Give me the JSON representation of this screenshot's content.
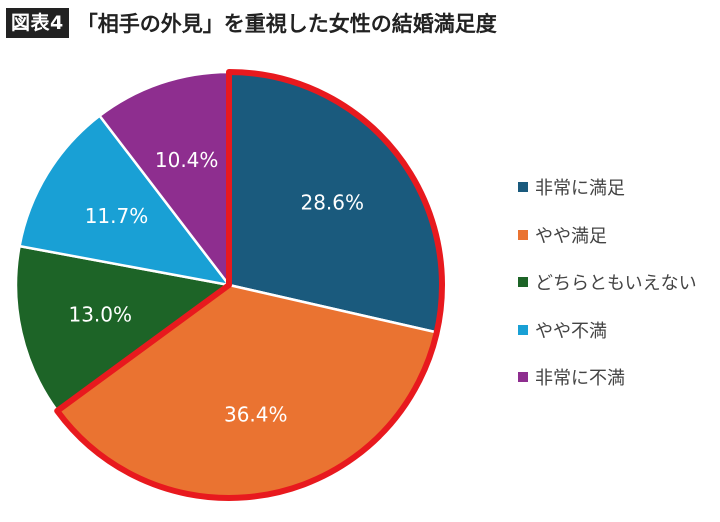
{
  "header": {
    "figure_label": "図表4",
    "title": "「相手の外見」を重視した女性の結婚満足度"
  },
  "highlight_color": "#e8191e",
  "chart_data": {
    "type": "pie",
    "title": "「相手の外見」を重視した女性の結婚満足度",
    "start_angle_deg": 0,
    "direction": "clockwise",
    "highlighted_slices": [
      "非常に満足",
      "やや満足"
    ],
    "legend_position": "right",
    "slices": [
      {
        "label": "非常に満足",
        "value": 28.6,
        "value_label": "28.6%",
        "color": "#1a5a7d"
      },
      {
        "label": "やや満足",
        "value": 36.4,
        "value_label": "36.4%",
        "color": "#ea7331"
      },
      {
        "label": "どちらともいえない",
        "value": 13.0,
        "value_label": "13.0%",
        "color": "#1d6427"
      },
      {
        "label": "やや不満",
        "value": 11.7,
        "value_label": "11.7%",
        "color": "#19a0d5"
      },
      {
        "label": "非常に不満",
        "value": 10.4,
        "value_label": "10.4%",
        "color": "#8e2e8f"
      }
    ]
  }
}
